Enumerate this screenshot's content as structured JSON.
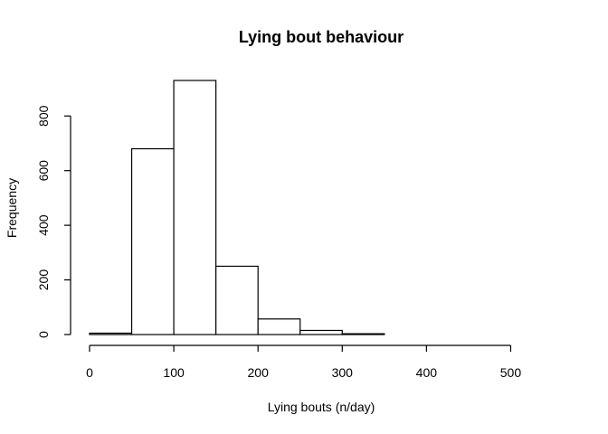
{
  "chart_data": {
    "type": "bar",
    "title": "Lying bout behaviour",
    "xlabel": "Lying bouts (n/day)",
    "ylabel": "Frequency",
    "xlim": [
      0,
      550
    ],
    "ylim": [
      0,
      930
    ],
    "x_ticks": [
      0,
      100,
      200,
      300,
      400,
      500
    ],
    "y_ticks": [
      0,
      200,
      400,
      600,
      800
    ],
    "bins": [
      {
        "start": 0,
        "end": 50,
        "value": 5
      },
      {
        "start": 50,
        "end": 100,
        "value": 680
      },
      {
        "start": 100,
        "end": 150,
        "value": 930
      },
      {
        "start": 150,
        "end": 200,
        "value": 250
      },
      {
        "start": 200,
        "end": 250,
        "value": 57
      },
      {
        "start": 250,
        "end": 300,
        "value": 15
      },
      {
        "start": 300,
        "end": 350,
        "value": 3
      },
      {
        "start": 350,
        "end": 400,
        "value": 0
      },
      {
        "start": 400,
        "end": 450,
        "value": 0
      },
      {
        "start": 450,
        "end": 500,
        "value": 0
      },
      {
        "start": 500,
        "end": 550,
        "value": 0
      }
    ],
    "grid": false,
    "legend": "none"
  }
}
